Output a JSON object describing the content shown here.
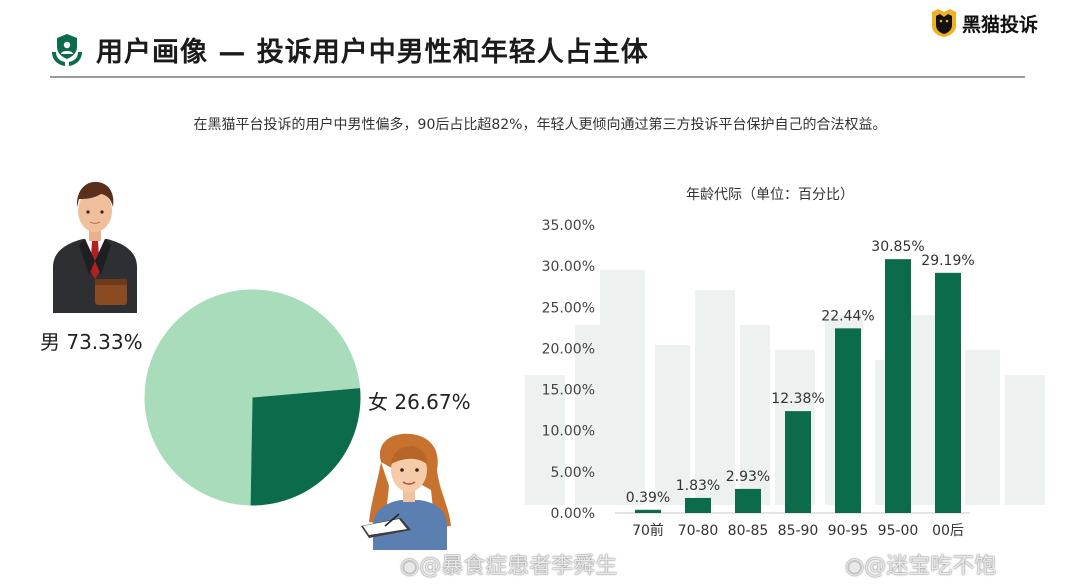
{
  "header": {
    "title": "用户画像 — 投诉用户中男性和年轻人占主体",
    "logo_text": "黑猫投诉"
  },
  "subtitle": "在黑猫平台投诉的用户中男性偏多，90后占比超82%，年轻人更倾向通过第三方投诉平台保护自己的合法权益。",
  "gender": {
    "male_label": "男 73.33%",
    "female_label": "女 26.67%"
  },
  "colors": {
    "dark_green": "#0c6b4a",
    "light_green": "#a8dcbb",
    "accent_red": "#b32020"
  },
  "watermarks": [
    "@暴食症患者李舜生",
    "@迷宝吃不饱"
  ],
  "chart_data": [
    {
      "type": "pie",
      "labels": [
        "男",
        "女"
      ],
      "values": [
        73.33,
        26.67
      ],
      "colors": [
        "#a8dcbb",
        "#0c6b4a"
      ]
    },
    {
      "type": "bar",
      "title": "年龄代际（单位：百分比）",
      "categories": [
        "70前",
        "70-80",
        "80-85",
        "85-90",
        "90-95",
        "95-00",
        "00后"
      ],
      "values": [
        0.39,
        1.83,
        2.93,
        12.38,
        22.44,
        30.85,
        29.19
      ],
      "data_labels": [
        "0.39%",
        "1.83%",
        "2.93%",
        "12.38%",
        "22.44%",
        "30.85%",
        "29.19%"
      ],
      "y_ticks": [
        "0.00%",
        "5.00%",
        "10.00%",
        "15.00%",
        "20.00%",
        "25.00%",
        "30.00%",
        "35.00%"
      ],
      "ylim": [
        0,
        35
      ],
      "grid": false,
      "color": "#0c6b4a"
    }
  ]
}
